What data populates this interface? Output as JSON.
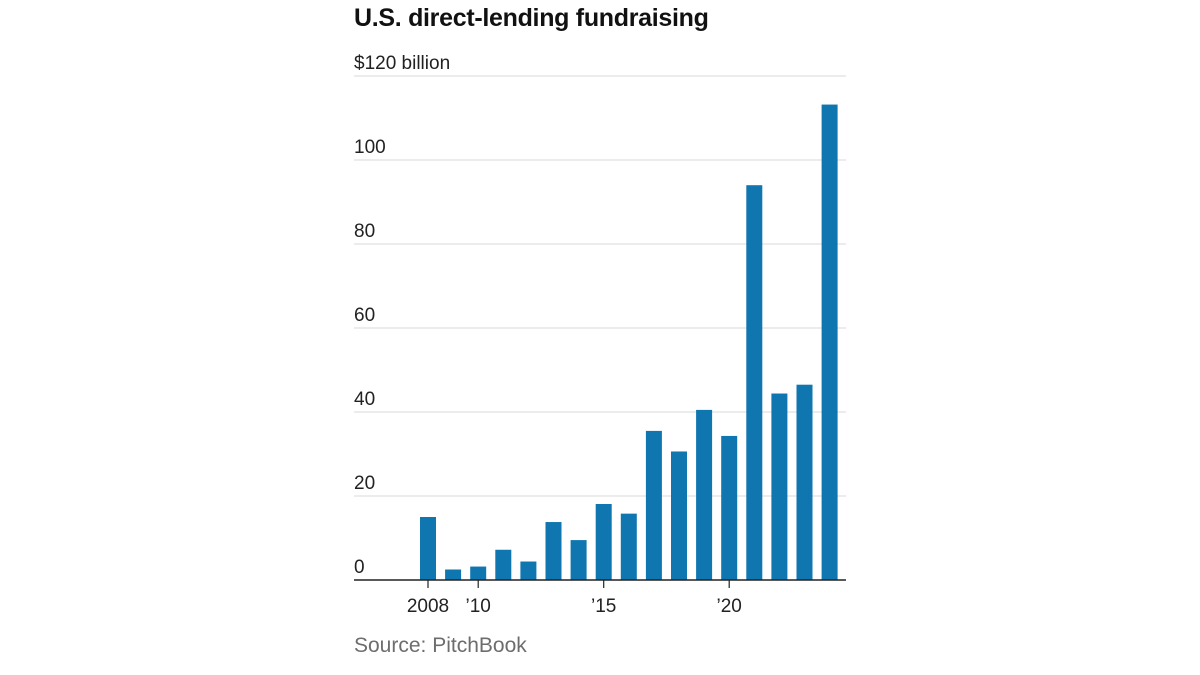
{
  "title": "U.S. direct-lending fundraising",
  "source": "Source: PitchBook",
  "colors": {
    "bar": "#0f76b0"
  },
  "chart_data": {
    "type": "bar",
    "title": "U.S. direct-lending fundraising",
    "xlabel": "",
    "ylabel": "",
    "y_unit_label": "$120 billion",
    "categories": [
      "2008",
      "2009",
      "2010",
      "2011",
      "2012",
      "2013",
      "2014",
      "2015",
      "2016",
      "2017",
      "2018",
      "2019",
      "2020",
      "2021",
      "2022",
      "2023",
      "2024"
    ],
    "values": [
      15,
      2.5,
      3.2,
      7.2,
      4.4,
      13.8,
      9.5,
      18.1,
      15.8,
      35.5,
      30.6,
      40.5,
      34.3,
      94,
      44.4,
      46.5,
      113.2
    ],
    "ylim": [
      0,
      120
    ],
    "y_ticks": [
      {
        "value": 0,
        "label": "0"
      },
      {
        "value": 20,
        "label": "20"
      },
      {
        "value": 40,
        "label": "40"
      },
      {
        "value": 60,
        "label": "60"
      },
      {
        "value": 80,
        "label": "80"
      },
      {
        "value": 100,
        "label": "100"
      },
      {
        "value": 120,
        "label": "$120 billion"
      }
    ],
    "x_ticks": [
      {
        "category": "2008",
        "label": "2008"
      },
      {
        "category": "2010",
        "label": "’10"
      },
      {
        "category": "2015",
        "label": "’15"
      },
      {
        "category": "2020",
        "label": "’20"
      }
    ],
    "grid": true,
    "legend": "none"
  }
}
